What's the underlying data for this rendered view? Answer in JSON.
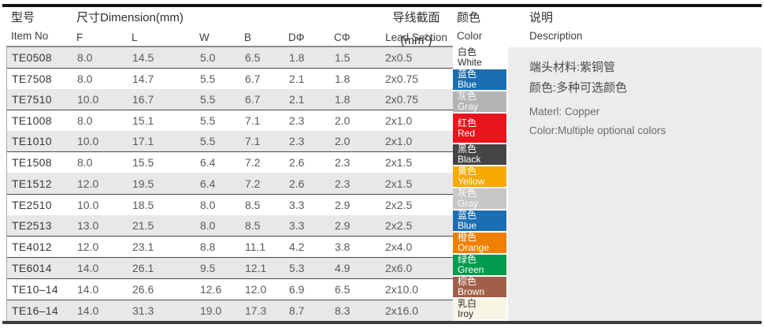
{
  "header": {
    "item_no_zh": "型号",
    "item_no_en": "Item No",
    "dimension_zh": "尺寸Dimension(mm)",
    "dim_cols": [
      "F",
      "L",
      "W",
      "B",
      "DΦ",
      "CΦ"
    ],
    "lead_zh": "导线截面(mm",
    "lead_sup": "2",
    "lead_close": ")",
    "lead_en": "Lead Section",
    "color_zh": "颜色",
    "color_en": "Color",
    "desc_zh": "说明",
    "desc_en": "Description"
  },
  "rows": [
    {
      "item": "TE0508",
      "f": "8.0",
      "l": "14.5",
      "w": "5.0",
      "b": "6.5",
      "d": "1.8",
      "c": "1.5",
      "lead": "2x0.5",
      "group_start": false
    },
    {
      "item": "TE7508",
      "f": "8.0",
      "l": "14.7",
      "w": "5.5",
      "b": "6.7",
      "d": "2.1",
      "c": "1.8",
      "lead": "2x0.75",
      "group_start": true
    },
    {
      "item": "TE7510",
      "f": "10.0",
      "l": "16.7",
      "w": "5.5",
      "b": "6.7",
      "d": "2.1",
      "c": "1.8",
      "lead": "2x0.75",
      "group_start": false
    },
    {
      "item": "TE1008",
      "f": "8.0",
      "l": "15.1",
      "w": "5.5",
      "b": "7.1",
      "d": "2.3",
      "c": "2.0",
      "lead": "2x1.0",
      "group_start": true
    },
    {
      "item": "TE1010",
      "f": "10.0",
      "l": "17.1",
      "w": "5.5",
      "b": "7.1",
      "d": "2.3",
      "c": "2.0",
      "lead": "2x1.0",
      "group_start": false
    },
    {
      "item": "TE1508",
      "f": "8.0",
      "l": "15.5",
      "w": "6.4",
      "b": "7.2",
      "d": "2.6",
      "c": "2.3",
      "lead": "2x1.5",
      "group_start": true
    },
    {
      "item": "TE1512",
      "f": "12.0",
      "l": "19.5",
      "w": "6.4",
      "b": "7.2",
      "d": "2.6",
      "c": "2.3",
      "lead": "2x1.5",
      "group_start": false
    },
    {
      "item": "TE2510",
      "f": "10.0",
      "l": "18.5",
      "w": "8.0",
      "b": "8.5",
      "d": "3.3",
      "c": "2.9",
      "lead": "2x2.5",
      "group_start": true
    },
    {
      "item": "TE2513",
      "f": "13.0",
      "l": "21.5",
      "w": "8.0",
      "b": "8.5",
      "d": "3.3",
      "c": "2.9",
      "lead": "2x2.5",
      "group_start": false
    },
    {
      "item": "TE4012",
      "f": "12.0",
      "l": "23.1",
      "w": "8.8",
      "b": "11.1",
      "d": "4.2",
      "c": "3.8",
      "lead": "2x4.0",
      "group_start": true
    },
    {
      "item": "TE6014",
      "f": "14.0",
      "l": "26.1",
      "w": "9.5",
      "b": "12.1",
      "d": "5.3",
      "c": "4.9",
      "lead": "2x6.0",
      "group_start": true
    },
    {
      "item": "TE10–14",
      "f": "14.0",
      "l": "26.6",
      "w": "12.6",
      "b": "12.0",
      "d": "6.9",
      "c": "6.5",
      "lead": "2x10.0",
      "group_start": true
    },
    {
      "item": "TE16–14",
      "f": "14.0",
      "l": "31.3",
      "w": "19.0",
      "b": "17.3",
      "d": "8.7",
      "c": "8.3",
      "lead": "2x16.0",
      "group_start": true
    }
  ],
  "swatches": [
    {
      "zh": "白色",
      "en": "White",
      "bg": "#ffffff",
      "fg": "#2e2e2e",
      "rows": 1
    },
    {
      "zh": "蓝色",
      "en": "Blue",
      "bg": "#1b6eb1",
      "fg": "#ffffff",
      "rows": 1
    },
    {
      "zh": "灰色",
      "en": "Gray",
      "bg": "#b4b4b4",
      "fg": "#ffffff",
      "rows": 1
    },
    {
      "zh": "红色",
      "en": "Red",
      "bg": "#e8151d",
      "fg": "#ffffff",
      "rows": 2
    },
    {
      "zh": "黑色",
      "en": "Black",
      "bg": "#454545",
      "fg": "#ffffff",
      "rows": 1
    },
    {
      "zh": "黄色",
      "en": "Yellow",
      "bg": "#f6a900",
      "fg": "#ffffff",
      "rows": 1
    },
    {
      "zh": "灰色",
      "en": "Gray",
      "bg": "#c7c7c7",
      "fg": "#ffffff",
      "rows": 1
    },
    {
      "zh": "蓝色",
      "en": "Blue",
      "bg": "#1b6eb1",
      "fg": "#ffffff",
      "rows": 1
    },
    {
      "zh": "橙色",
      "en": "Orange",
      "bg": "#f07e00",
      "fg": "#ffffff",
      "rows": 1
    },
    {
      "zh": "绿色",
      "en": "Green",
      "bg": "#009b4c",
      "fg": "#ffffff",
      "rows": 1
    },
    {
      "zh": "棕色",
      "en": "Brown",
      "bg": "#a15f4a",
      "fg": "#ffffff",
      "rows": 1
    },
    {
      "zh": "乳白",
      "en": "Iroy",
      "bg": "#f7f5e3",
      "fg": "#2e2e2e",
      "rows": 1
    }
  ],
  "description": {
    "zh_line1": "端头材料:紫铜管",
    "zh_line2": "颜色:多种可选颜色",
    "en_line1": "Materl: Copper",
    "en_line2": "Color:Multiple optional colors"
  },
  "colors": {
    "stripe": "#e8e8e8",
    "group_line": "#4a4a4a",
    "desc_bg": "#ececec",
    "top_rule": "#141414",
    "bottom_rule": "#3c3c3c"
  }
}
